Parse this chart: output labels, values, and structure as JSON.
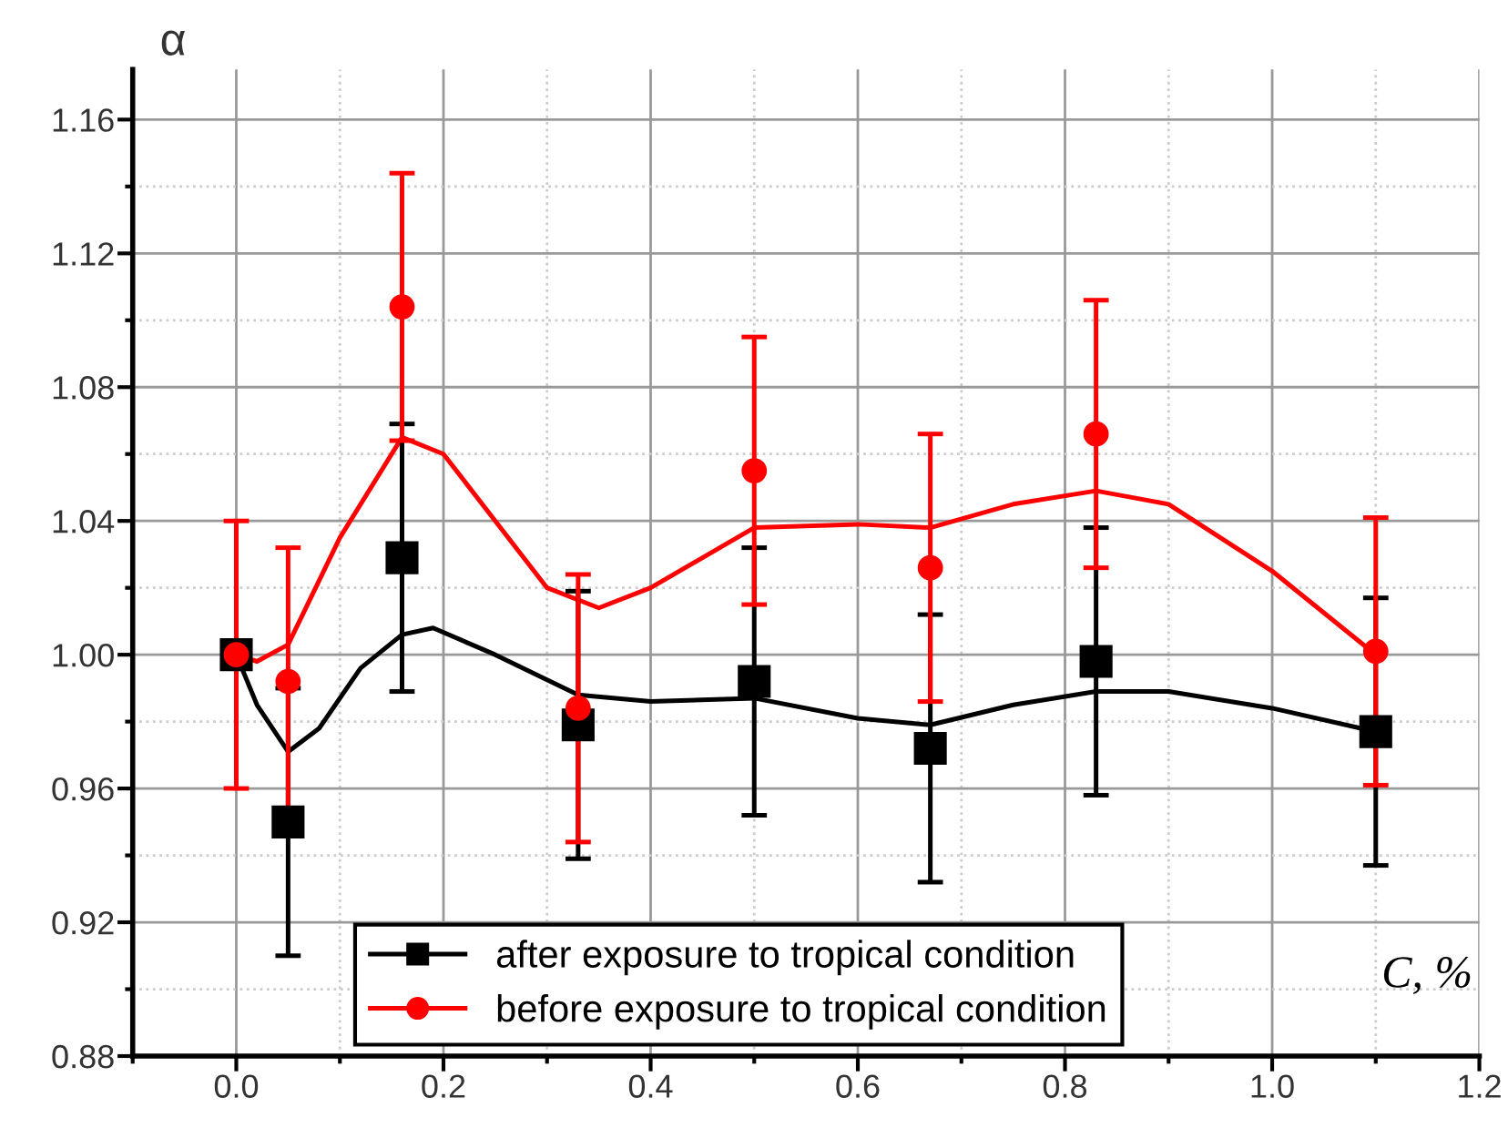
{
  "chart_data": {
    "type": "scatter",
    "xlabel": "C, %",
    "ylabel": "α",
    "xlim": [
      -0.1,
      1.2
    ],
    "ylim": [
      0.88,
      1.175
    ],
    "xticks": [
      {
        "value": -0.1,
        "label": null
      },
      {
        "value": 0,
        "label": "0.0"
      },
      {
        "value": 0.1,
        "label": null
      },
      {
        "value": 0.2,
        "label": "0.2"
      },
      {
        "value": 0.3,
        "label": null
      },
      {
        "value": 0.4,
        "label": "0.4"
      },
      {
        "value": 0.5,
        "label": null
      },
      {
        "value": 0.6,
        "label": "0.6"
      },
      {
        "value": 0.7,
        "label": null
      },
      {
        "value": 0.8,
        "label": "0.8"
      },
      {
        "value": 0.9,
        "label": null
      },
      {
        "value": 1,
        "label": "1.0"
      },
      {
        "value": 1.1,
        "label": null
      },
      {
        "value": 1.2,
        "label": "1.2"
      }
    ],
    "yticks": [
      {
        "value": 0.88,
        "label": "0.88"
      },
      {
        "value": 0.9,
        "label": null
      },
      {
        "value": 0.92,
        "label": "0.92"
      },
      {
        "value": 0.94,
        "label": null
      },
      {
        "value": 0.96,
        "label": "0.96"
      },
      {
        "value": 0.98,
        "label": null
      },
      {
        "value": 1,
        "label": "1.00"
      },
      {
        "value": 1.02,
        "label": null
      },
      {
        "value": 1.04,
        "label": "1.04"
      },
      {
        "value": 1.06,
        "label": null
      },
      {
        "value": 1.08,
        "label": "1.08"
      },
      {
        "value": 1.1,
        "label": null
      },
      {
        "value": 1.12,
        "label": "1.12"
      },
      {
        "value": 1.14,
        "label": null
      },
      {
        "value": 1.16,
        "label": "1.16"
      }
    ],
    "grid": true,
    "legend": "bottom",
    "series": [
      {
        "name": "after exposure to tropical condition",
        "marker": "square",
        "color": "#000000",
        "x": [
          0,
          0.05,
          0.16,
          0.33,
          0.5,
          0.67,
          0.83,
          1.1
        ],
        "values": [
          1.0,
          0.95,
          1.029,
          0.979,
          0.992,
          0.972,
          0.998,
          0.977
        ],
        "errors": [
          null,
          0.04,
          0.04,
          0.04,
          0.04,
          0.04,
          0.04,
          0.04
        ]
      },
      {
        "name": "before exposure to tropical condition",
        "marker": "circle",
        "color": "#ff0000",
        "x": [
          0,
          0.05,
          0.16,
          0.33,
          0.5,
          0.67,
          0.83,
          1.1
        ],
        "values": [
          1.0,
          0.992,
          1.104,
          0.984,
          1.055,
          1.026,
          1.066,
          1.001
        ],
        "errors": [
          0.04,
          0.04,
          0.04,
          0.04,
          0.04,
          0.04,
          0.04,
          0.04
        ]
      },
      {
        "type": "line",
        "color": "#000000",
        "x": [
          0,
          0.02,
          0.05,
          0.08,
          0.12,
          0.16,
          0.19,
          0.25,
          0.33,
          0.4,
          0.5,
          0.6,
          0.67,
          0.75,
          0.83,
          0.9,
          1.0,
          1.1
        ],
        "values": [
          1.0,
          0.985,
          0.971,
          0.978,
          0.996,
          1.006,
          1.008,
          1.0,
          0.988,
          0.986,
          0.987,
          0.981,
          0.979,
          0.985,
          0.989,
          0.989,
          0.984,
          0.977
        ]
      },
      {
        "type": "line",
        "color": "#ff0000",
        "x": [
          0,
          0.02,
          0.05,
          0.1,
          0.16,
          0.2,
          0.25,
          0.3,
          0.35,
          0.4,
          0.5,
          0.6,
          0.67,
          0.75,
          0.83,
          0.9,
          1.0,
          1.1
        ],
        "values": [
          1.0,
          0.998,
          1.003,
          1.035,
          1.065,
          1.06,
          1.04,
          1.02,
          1.014,
          1.02,
          1.038,
          1.039,
          1.038,
          1.045,
          1.049,
          1.045,
          1.025,
          1.0
        ]
      }
    ]
  }
}
